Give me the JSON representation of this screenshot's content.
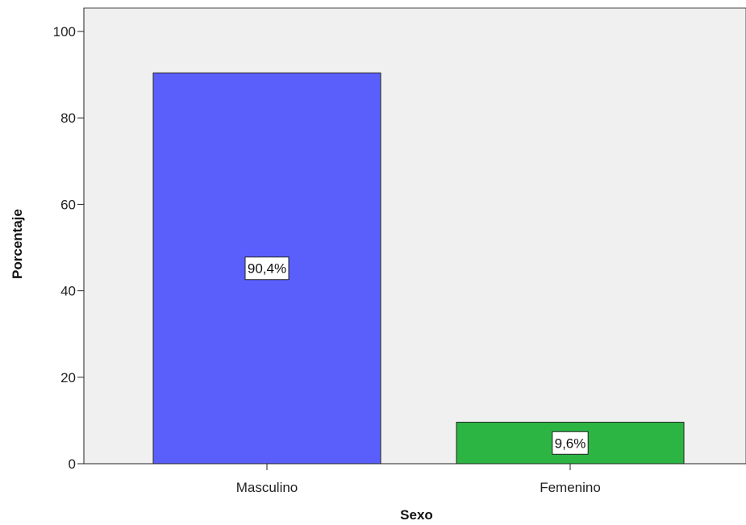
{
  "chart_data": {
    "type": "bar",
    "categories": [
      "Masculino",
      "Femenino"
    ],
    "values": [
      90.4,
      9.6
    ],
    "data_labels": [
      "90,4%",
      "9,6%"
    ],
    "bar_colors": [
      "#5a5ffc",
      "#2db544"
    ],
    "xlabel": "Sexo",
    "ylabel": "Porcentaje",
    "ylim": [
      0,
      100
    ],
    "yticks": [
      0,
      20,
      40,
      60,
      80,
      100
    ],
    "ytick_labels": [
      "0",
      "20",
      "40",
      "60",
      "80",
      "100"
    ],
    "grid": false,
    "plot_background": "#f0f0f0"
  }
}
